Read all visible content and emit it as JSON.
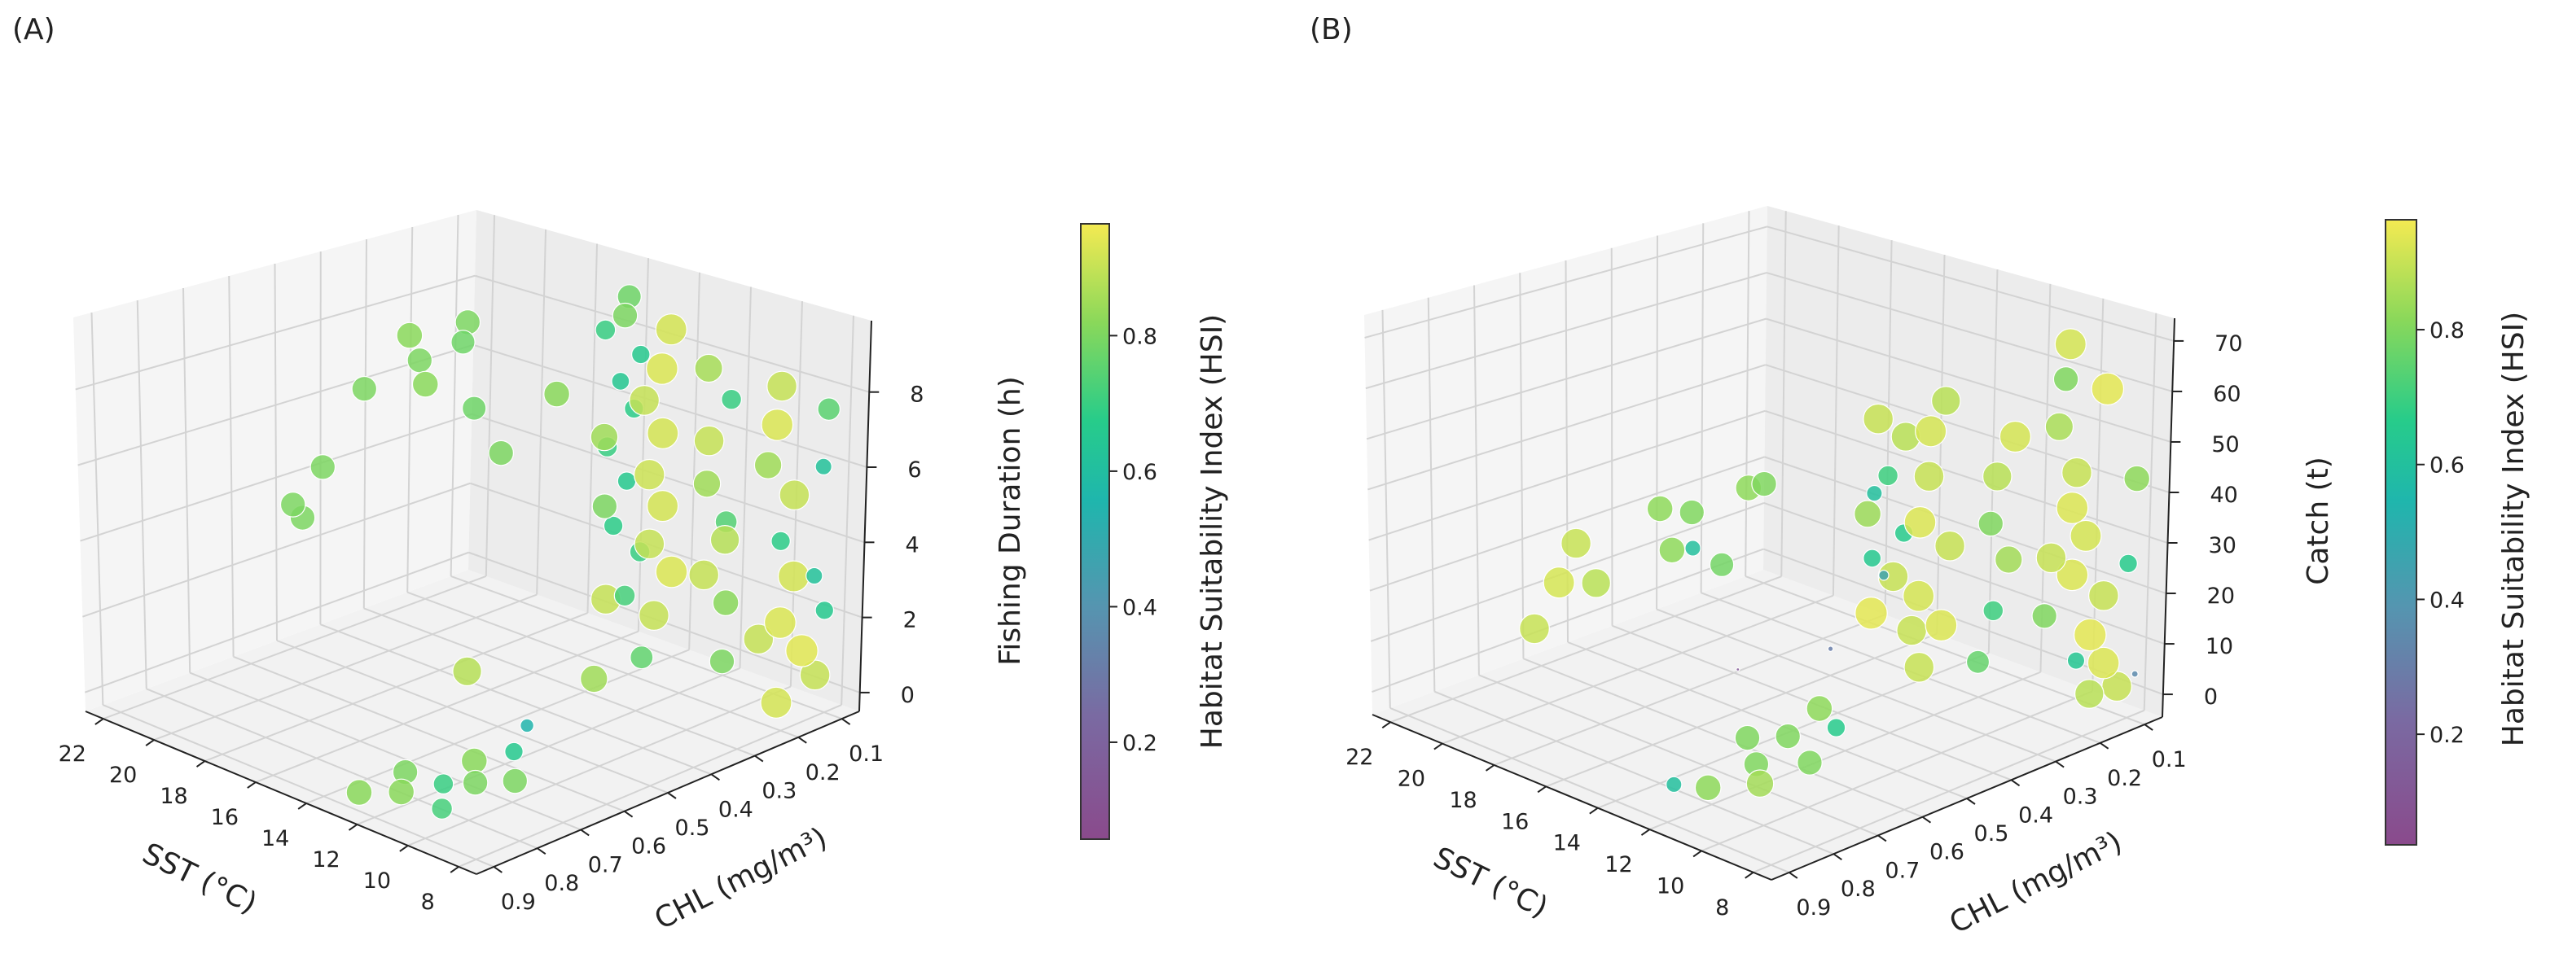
{
  "chart_data": [
    {
      "type": "scatter",
      "panel_label": "(A)",
      "xlabel": "SST (°C)",
      "ylabel": "CHL (mg/m³)",
      "zlabel": "Fishing Duration (h)",
      "colorbar_label": "Habitat Suitability Index (HSI)",
      "x_ticks": [
        "22",
        "20",
        "18",
        "16",
        "14",
        "12",
        "10",
        "8"
      ],
      "y_ticks": [
        "0.9",
        "0.8",
        "0.7",
        "0.6",
        "0.5",
        "0.4",
        "0.3",
        "0.2",
        "0.1"
      ],
      "z_ticks": [
        "0",
        "2",
        "4",
        "6",
        "8"
      ],
      "colorbar_ticks": [
        "0.2",
        "0.4",
        "0.6",
        "0.8"
      ],
      "xlim": [
        7.3,
        22.7
      ],
      "ylim": [
        0.06,
        0.94
      ],
      "zlim": [
        -0.5,
        9.9
      ],
      "clim": [
        0.057,
        0.965
      ],
      "points_format": [
        "SST",
        "CHL",
        "value",
        "HSI"
      ],
      "points": [
        [
          21,
          0.3,
          7.6,
          0.82
        ],
        [
          20.5,
          0.2,
          7.7,
          0.8
        ],
        [
          20.6,
          0.3,
          7,
          0.8
        ],
        [
          19.8,
          0.25,
          7.5,
          0.78
        ],
        [
          21,
          0.4,
          6.5,
          0.8
        ],
        [
          19.5,
          0.35,
          6.8,
          0.82
        ],
        [
          20,
          0.55,
          5.2,
          0.8
        ],
        [
          20.3,
          0.6,
          4.3,
          0.8
        ],
        [
          20.8,
          0.55,
          3.6,
          0.8
        ],
        [
          17,
          0.2,
          6.5,
          0.82
        ],
        [
          17.4,
          0.3,
          5.2,
          0.8
        ],
        [
          17.6,
          0.35,
          6.6,
          0.78
        ],
        [
          16,
          0.1,
          9,
          0.78
        ],
        [
          15.8,
          0.12,
          8.6,
          0.8
        ],
        [
          16.2,
          0.14,
          8.2,
          0.7
        ],
        [
          15.5,
          0.1,
          7.5,
          0.66
        ],
        [
          15.4,
          0.15,
          7,
          0.65
        ],
        [
          15.2,
          0.13,
          6.2,
          0.68
        ],
        [
          15,
          0.2,
          5.5,
          0.7
        ],
        [
          14.9,
          0.16,
          4.4,
          0.66
        ],
        [
          14.7,
          0.2,
          3.4,
          0.68
        ],
        [
          14.5,
          0.15,
          2.5,
          0.7
        ],
        [
          14.6,
          0.22,
          1.5,
          0.9
        ],
        [
          14,
          0.12,
          8.6,
          0.92
        ],
        [
          13.8,
          0.15,
          7.7,
          0.93
        ],
        [
          13.6,
          0.2,
          7.1,
          0.9
        ],
        [
          13.2,
          0.18,
          6.2,
          0.92
        ],
        [
          13,
          0.22,
          5.3,
          0.91
        ],
        [
          12.8,
          0.2,
          4.4,
          0.92
        ],
        [
          12.6,
          0.24,
          3.6,
          0.9
        ],
        [
          12.4,
          0.2,
          2.7,
          0.93
        ],
        [
          12.2,
          0.25,
          1.8,
          0.9
        ],
        [
          13.4,
          0.3,
          6.6,
          0.85
        ],
        [
          13,
          0.32,
          4.9,
          0.8
        ],
        [
          12.5,
          0.3,
          2.5,
          0.72
        ],
        [
          12,
          0.15,
          8.1,
          0.86
        ],
        [
          11.6,
          0.12,
          7.2,
          0.7
        ],
        [
          11.4,
          0.18,
          6.4,
          0.9
        ],
        [
          11.1,
          0.2,
          5.4,
          0.85
        ],
        [
          11,
          0.16,
          4.2,
          0.74
        ],
        [
          10.8,
          0.22,
          3.1,
          0.9
        ],
        [
          10.6,
          0.18,
          2.2,
          0.82
        ],
        [
          10.3,
          0.12,
          1,
          0.9
        ],
        [
          11.8,
          0.3,
          1,
          0.76
        ],
        [
          12.8,
          0.35,
          0.4,
          0.85
        ],
        [
          10,
          0.1,
          7.8,
          0.9
        ],
        [
          9.8,
          0.12,
          6.9,
          0.93
        ],
        [
          9.6,
          0.15,
          6,
          0.85
        ],
        [
          9.4,
          0.1,
          5,
          0.9
        ],
        [
          9.2,
          0.14,
          4,
          0.68
        ],
        [
          9,
          0.12,
          3,
          0.92
        ],
        [
          8.8,
          0.16,
          2,
          0.93
        ],
        [
          8.6,
          0.12,
          1.1,
          0.94
        ],
        [
          8.4,
          0.1,
          0.4,
          0.9
        ],
        [
          9.5,
          0.25,
          4.5,
          0.88
        ],
        [
          9,
          0.28,
          1.5,
          0.8
        ],
        [
          8.2,
          0.2,
          0.2,
          0.92
        ],
        [
          8.5,
          0.08,
          7.4,
          0.75
        ],
        [
          8.3,
          0.1,
          6,
          0.62
        ],
        [
          8.2,
          0.12,
          3.2,
          0.62
        ],
        [
          8.1,
          0.1,
          2.2,
          0.66
        ],
        [
          12,
          0.55,
          0.3,
          0.55
        ],
        [
          11.5,
          0.7,
          0.2,
          0.82
        ],
        [
          12.5,
          0.8,
          0.1,
          0.8
        ],
        [
          11.8,
          0.85,
          0,
          0.82
        ],
        [
          11,
          0.8,
          0.2,
          0.7
        ],
        [
          10.6,
          0.75,
          0.1,
          0.8
        ],
        [
          10.2,
          0.85,
          0,
          0.72
        ],
        [
          10.8,
          0.65,
          0.4,
          0.66
        ],
        [
          9.9,
          0.7,
          0.1,
          0.8
        ],
        [
          12.6,
          0.9,
          0,
          0.82
        ],
        [
          13.5,
          0.6,
          1.6,
          0.88
        ]
      ]
    },
    {
      "type": "scatter",
      "panel_label": "(B)",
      "xlabel": "SST (°C)",
      "ylabel": "CHL (mg/m³)",
      "zlabel": "Catch (t)",
      "colorbar_label": "Habitat Suitability Index (HSI)",
      "x_ticks": [
        "22",
        "20",
        "18",
        "16",
        "14",
        "12",
        "10",
        "8"
      ],
      "y_ticks": [
        "0.9",
        "0.8",
        "0.7",
        "0.6",
        "0.5",
        "0.4",
        "0.3",
        "0.2",
        "0.1"
      ],
      "z_ticks": [
        "0",
        "10",
        "20",
        "30",
        "40",
        "50",
        "60",
        "70"
      ],
      "colorbar_ticks": [
        "0.2",
        "0.4",
        "0.6",
        "0.8"
      ],
      "xlim": [
        7.3,
        22.7
      ],
      "ylim": [
        0.06,
        0.94
      ],
      "zlim": [
        -4.5,
        74.5
      ],
      "clim": [
        0.036,
        0.963
      ],
      "points_format": [
        "SST",
        "CHL",
        "value",
        "HSI"
      ],
      "points": [
        [
          21.5,
          0.55,
          20,
          0.9
        ],
        [
          21.3,
          0.6,
          14,
          0.92
        ],
        [
          21.6,
          0.5,
          10,
          0.88
        ],
        [
          21.4,
          0.65,
          6,
          0.9
        ],
        [
          20.5,
          0.35,
          22,
          0.8
        ],
        [
          20.4,
          0.4,
          16,
          0.82
        ],
        [
          20.2,
          0.3,
          10,
          0.78
        ],
        [
          20,
          0.45,
          27,
          0.82
        ],
        [
          19.2,
          0.3,
          28,
          0.82
        ],
        [
          18.6,
          0.3,
          30,
          0.8
        ],
        [
          19.6,
          0.4,
          18,
          0.6
        ],
        [
          16,
          0.2,
          45,
          0.9
        ],
        [
          15.8,
          0.15,
          40,
          0.88
        ],
        [
          15.6,
          0.2,
          34,
          0.7
        ],
        [
          15.5,
          0.25,
          28,
          0.84
        ],
        [
          15.3,
          0.18,
          22,
          0.66
        ],
        [
          15,
          0.22,
          15,
          0.9
        ],
        [
          14.8,
          0.28,
          10,
          0.94
        ],
        [
          14.6,
          0.2,
          4,
          0.9
        ],
        [
          14.3,
          0.15,
          50,
          0.88
        ],
        [
          14,
          0.2,
          46,
          0.92
        ],
        [
          13.7,
          0.22,
          38,
          0.9
        ],
        [
          13.5,
          0.25,
          30,
          0.93
        ],
        [
          13.2,
          0.2,
          24,
          0.9
        ],
        [
          13,
          0.28,
          17,
          0.92
        ],
        [
          12.8,
          0.24,
          10,
          0.93
        ],
        [
          12.6,
          0.3,
          4,
          0.9
        ],
        [
          14.4,
          0.3,
          36,
          0.6
        ],
        [
          13.6,
          0.35,
          26,
          0.65
        ],
        [
          12.5,
          0.1,
          44,
          0.92
        ],
        [
          12.3,
          0.15,
          38,
          0.88
        ],
        [
          12,
          0.18,
          30,
          0.8
        ],
        [
          11.8,
          0.15,
          22,
          0.85
        ],
        [
          11.5,
          0.2,
          14,
          0.7
        ],
        [
          11.2,
          0.25,
          6,
          0.76
        ],
        [
          10.5,
          0.1,
          66,
          0.92
        ],
        [
          10.3,
          0.12,
          60,
          0.8
        ],
        [
          10,
          0.15,
          52,
          0.86
        ],
        [
          9.4,
          0.08,
          58,
          0.94
        ],
        [
          9.8,
          0.12,
          42,
          0.9
        ],
        [
          9.6,
          0.14,
          36,
          0.93
        ],
        [
          9.4,
          0.12,
          30,
          0.92
        ],
        [
          9.2,
          0.16,
          24,
          0.93
        ],
        [
          9,
          0.1,
          18,
          0.9
        ],
        [
          8.8,
          0.14,
          12,
          0.94
        ],
        [
          8.6,
          0.12,
          6,
          0.93
        ],
        [
          8.4,
          0.1,
          1,
          0.9
        ],
        [
          9,
          0.22,
          30,
          0.9
        ],
        [
          8.7,
          0.25,
          20,
          0.8
        ],
        [
          8.3,
          0.2,
          10,
          0.64
        ],
        [
          8.1,
          0.18,
          3,
          0.88
        ],
        [
          8.2,
          0.08,
          42,
          0.82
        ],
        [
          8.1,
          0.1,
          26,
          0.66
        ],
        [
          8.4,
          0.06,
          2,
          0.35
        ],
        [
          13,
          0.5,
          2,
          0.82
        ],
        [
          12.5,
          0.6,
          1,
          0.8
        ],
        [
          11.5,
          0.55,
          3,
          0.66
        ],
        [
          12,
          0.7,
          0,
          0.8
        ],
        [
          11,
          0.75,
          0,
          0.85
        ],
        [
          11.8,
          0.82,
          0,
          0.82
        ],
        [
          10.8,
          0.65,
          1,
          0.8
        ],
        [
          12.6,
          0.85,
          0,
          0.6
        ],
        [
          13.2,
          0.65,
          1,
          0.8
        ],
        [
          16,
          0.3,
          1,
          0.3
        ],
        [
          17,
          0.45,
          0,
          0.12
        ],
        [
          14,
          0.3,
          20,
          0.45
        ]
      ]
    }
  ]
}
